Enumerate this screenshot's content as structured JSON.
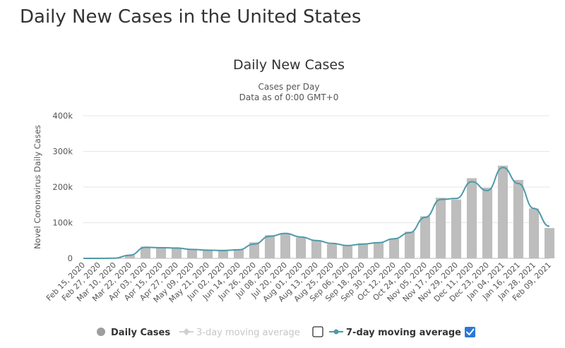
{
  "page": {
    "title": "Daily New Cases in the United States"
  },
  "chart_data": {
    "type": "bar",
    "title": "Daily New Cases",
    "subtitle_lines": [
      "Cases per Day",
      "Data as of 0:00 GMT+0"
    ],
    "xlabel": "",
    "ylabel": "Novel Coronavirus Daily Cases",
    "ylim": [
      0,
      400000
    ],
    "yticks": [
      0,
      100000,
      200000,
      300000,
      400000
    ],
    "ytick_labels": [
      "0",
      "100k",
      "200k",
      "300k",
      "400k"
    ],
    "x_tick_labels": [
      "Feb 15, 2020",
      "Feb 27, 2020",
      "Mar 10, 2020",
      "Mar 22, 2020",
      "Apr 03, 2020",
      "Apr 15, 2020",
      "Apr 27, 2020",
      "May 09, 2020",
      "May 21, 2020",
      "Jun 02, 2020",
      "Jun 14, 2020",
      "Jun 26, 2020",
      "Jul 08, 2020",
      "Jul 20, 2020",
      "Aug 01, 2020",
      "Aug 13, 2020",
      "Aug 25, 2020",
      "Sep 06, 2020",
      "Sep 18, 2020",
      "Sep 30, 2020",
      "Oct 12, 2020",
      "Oct 24, 2020",
      "Nov 05, 2020",
      "Nov 17, 2020",
      "Nov 29, 2020",
      "Dec 11, 2020",
      "Dec 23, 2020",
      "Jan 04, 2021",
      "Jan 16, 2021",
      "Jan 28, 2021",
      "Feb 09, 2021"
    ],
    "grid": true,
    "legend_position": "bottom",
    "series_colors": {
      "daily": "#bdbdbd",
      "ma3": "#cfcfcf",
      "ma7": "#4d9aa8"
    },
    "series": [
      {
        "name": "Daily Cases",
        "type": "bar",
        "visible": true,
        "x": [
          "Feb 15, 2020",
          "Feb 27, 2020",
          "Mar 10, 2020",
          "Mar 22, 2020",
          "Apr 03, 2020",
          "Apr 15, 2020",
          "Apr 27, 2020",
          "May 09, 2020",
          "May 21, 2020",
          "Jun 02, 2020",
          "Jun 14, 2020",
          "Jun 26, 2020",
          "Jul 08, 2020",
          "Jul 20, 2020",
          "Aug 01, 2020",
          "Aug 13, 2020",
          "Aug 25, 2020",
          "Sep 06, 2020",
          "Sep 18, 2020",
          "Sep 30, 2020",
          "Oct 12, 2020",
          "Oct 24, 2020",
          "Nov 05, 2020",
          "Nov 17, 2020",
          "Nov 29, 2020",
          "Dec 11, 2020",
          "Dec 23, 2020",
          "Jan 04, 2021",
          "Jan 16, 2021",
          "Jan 28, 2021",
          "Feb 09, 2021"
        ],
        "values": [
          0,
          0,
          1000,
          9000,
          33000,
          29000,
          28000,
          24000,
          22000,
          24000,
          26000,
          45000,
          65000,
          70000,
          58000,
          50000,
          40000,
          35000,
          42000,
          45000,
          55000,
          75000,
          118000,
          170000,
          165000,
          225000,
          198000,
          260000,
          220000,
          140000,
          85000
        ]
      },
      {
        "name": "3-day moving average",
        "type": "line",
        "visible": false
      },
      {
        "name": "7-day moving average",
        "type": "line",
        "visible": true,
        "x": [
          "Feb 15, 2020",
          "Feb 27, 2020",
          "Mar 10, 2020",
          "Mar 22, 2020",
          "Apr 03, 2020",
          "Apr 15, 2020",
          "Apr 27, 2020",
          "May 09, 2020",
          "May 21, 2020",
          "Jun 02, 2020",
          "Jun 14, 2020",
          "Jun 26, 2020",
          "Jul 08, 2020",
          "Jul 20, 2020",
          "Aug 01, 2020",
          "Aug 13, 2020",
          "Aug 25, 2020",
          "Sep 06, 2020",
          "Sep 18, 2020",
          "Sep 30, 2020",
          "Oct 12, 2020",
          "Oct 24, 2020",
          "Nov 05, 2020",
          "Nov 17, 2020",
          "Nov 29, 2020",
          "Dec 11, 2020",
          "Dec 23, 2020",
          "Jan 04, 2021",
          "Jan 16, 2021",
          "Jan 28, 2021",
          "Feb 09, 2021"
        ],
        "values": [
          0,
          0,
          500,
          9000,
          31000,
          30000,
          29000,
          25000,
          23000,
          22000,
          24000,
          40000,
          62000,
          70000,
          60000,
          50000,
          42000,
          36000,
          40000,
          44000,
          55000,
          72000,
          115000,
          165000,
          168000,
          215000,
          190000,
          255000,
          210000,
          140000,
          90000
        ]
      }
    ],
    "legend_items": [
      {
        "label": "Daily Cases",
        "visible": true
      },
      {
        "label": "3-day moving average",
        "visible": false,
        "checkbox_checked": false
      },
      {
        "label": "7-day moving average",
        "visible": true,
        "checkbox_checked": true
      }
    ]
  }
}
